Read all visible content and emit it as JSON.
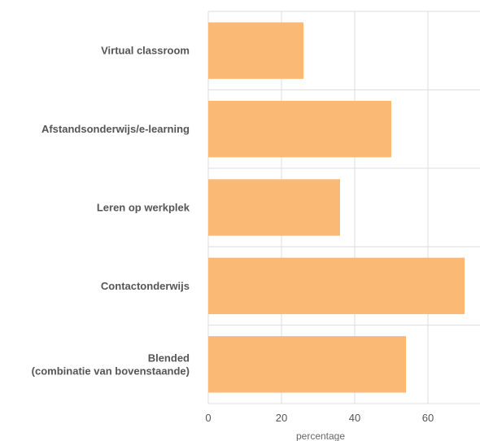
{
  "colors": {
    "bar": "#fbb976",
    "grid": "#dddddd",
    "text": "#555555"
  },
  "chart_data": {
    "type": "bar",
    "orientation": "horizontal",
    "categories": [
      "Virtual classroom",
      "Afstandsonderwijs/e-learning",
      "Leren op werkplek",
      "Contactonderwijs",
      "Blended\n(combinatie van bovenstaande)"
    ],
    "values": [
      26,
      50,
      36,
      70,
      54
    ],
    "xlabel": "percentage",
    "ylabel": "",
    "xlim": [
      0,
      74
    ],
    "xticks": [
      0,
      20,
      40,
      60
    ],
    "grid": true,
    "legend": "none"
  }
}
